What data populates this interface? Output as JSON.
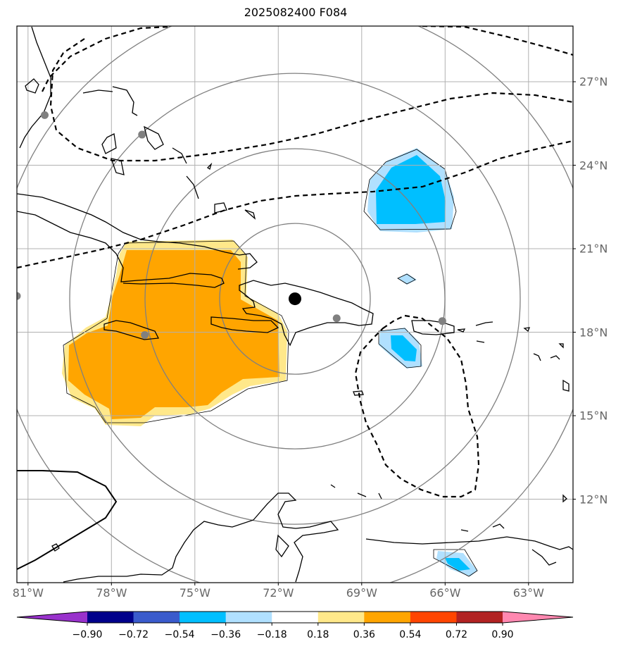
{
  "title": "2025082400 F084",
  "axes": {
    "lon_labels": [
      "81°W",
      "78°W",
      "75°W",
      "72°W",
      "69°W",
      "66°W",
      "63°W"
    ],
    "lon_values": [
      -81,
      -78,
      -75,
      -72,
      -69,
      -66,
      -63
    ],
    "lat_labels": [
      "27°N",
      "24°N",
      "21°N",
      "18°N",
      "15°N",
      "12°N"
    ],
    "lat_values": [
      27,
      24,
      21,
      18,
      15,
      12
    ],
    "lon_range": [
      -81.4,
      -61.4
    ],
    "lat_range": [
      9.0,
      29.0
    ],
    "grid": true
  },
  "colorbar": {
    "labels": [
      "−0.90",
      "−0.72",
      "−0.54",
      "−0.36",
      "−0.18",
      "0.18",
      "0.36",
      "0.54",
      "0.72",
      "0.90"
    ],
    "colors": [
      "#9932cc",
      "#00008b",
      "#3a5bcc",
      "#00bfff",
      "#b0e0ff",
      "#ffffff",
      "#ffe88a",
      "#ffa500",
      "#ff4500",
      "#b22222",
      "#ff88b0"
    ]
  },
  "map": {
    "center": {
      "lon": -71.4,
      "lat": 19.2
    },
    "center_color": "#000000",
    "cities": [
      {
        "lon": -80.4,
        "lat": 25.8
      },
      {
        "lon": -76.9,
        "lat": 25.1
      },
      {
        "lon": -76.8,
        "lat": 17.9
      },
      {
        "lon": -69.9,
        "lat": 18.5
      },
      {
        "lon": -66.1,
        "lat": 18.4
      },
      {
        "lon": -81.4,
        "lat": 19.3
      }
    ],
    "city_color": "#808080",
    "range_ring_color": "#808080",
    "positive_fill_color": "#ffa500",
    "positive_light_color": "#ffe88a",
    "negative_fill_color": "#00bfff",
    "negative_light_color": "#b0e0ff"
  }
}
